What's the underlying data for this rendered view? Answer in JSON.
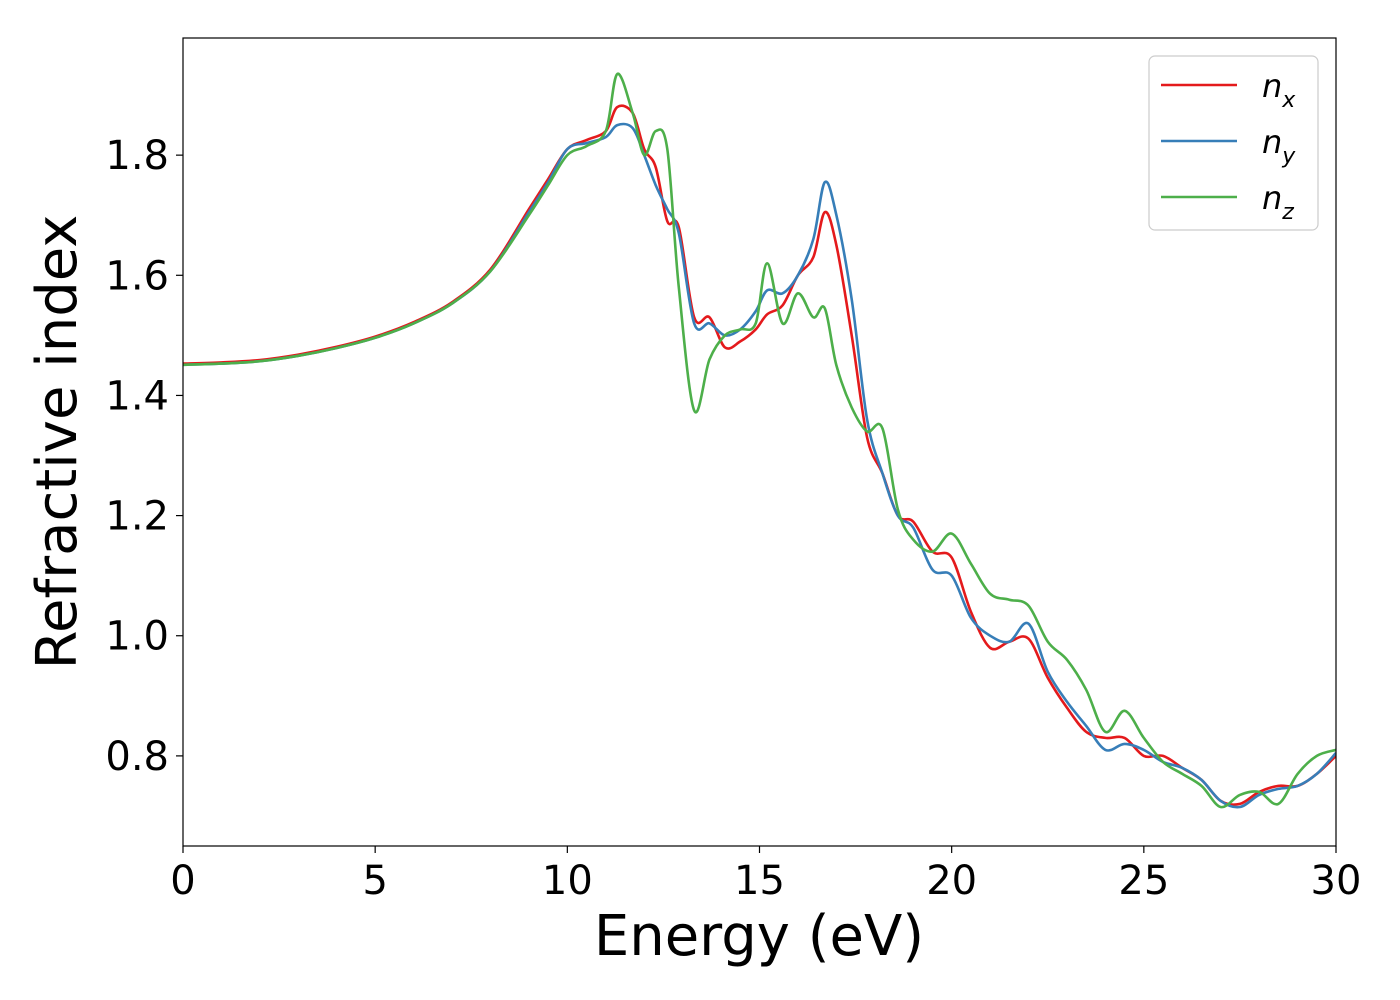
{
  "chart_data": {
    "type": "line",
    "xlabel": "Energy (eV)",
    "ylabel": "Refractive index",
    "xlim": [
      0,
      30
    ],
    "ylim": [
      0.65,
      1.995
    ],
    "xticks": [
      "0",
      "5",
      "10",
      "15",
      "20",
      "25",
      "30"
    ],
    "yticks": [
      "0.8",
      "1.0",
      "1.2",
      "1.4",
      "1.6",
      "1.8"
    ],
    "grid": false,
    "legend_position": "top-right",
    "series": [
      {
        "name": "n_x",
        "label_main": "n",
        "label_sub": "x",
        "color": "#e41a1c",
        "x": [
          0,
          1,
          2,
          3,
          4,
          5,
          6,
          7,
          8,
          9,
          9.5,
          10,
          10.5,
          11,
          11.3,
          11.7,
          12,
          12.3,
          12.6,
          12.9,
          13.3,
          13.7,
          14.1,
          14.5,
          14.9,
          15.2,
          15.6,
          16,
          16.4,
          16.7,
          17,
          17.4,
          17.8,
          18.2,
          18.6,
          19,
          19.5,
          20,
          20.5,
          21,
          21.5,
          22,
          22.5,
          23,
          23.5,
          24,
          24.5,
          25,
          25.5,
          26,
          26.5,
          27,
          27.5,
          28,
          28.5,
          29,
          29.5,
          30
        ],
        "y": [
          1.453,
          1.455,
          1.459,
          1.468,
          1.481,
          1.498,
          1.522,
          1.555,
          1.61,
          1.71,
          1.76,
          1.81,
          1.825,
          1.84,
          1.88,
          1.87,
          1.81,
          1.78,
          1.69,
          1.68,
          1.53,
          1.53,
          1.48,
          1.49,
          1.51,
          1.535,
          1.55,
          1.6,
          1.63,
          1.705,
          1.65,
          1.5,
          1.33,
          1.27,
          1.2,
          1.19,
          1.14,
          1.13,
          1.04,
          0.98,
          0.99,
          0.995,
          0.93,
          0.88,
          0.84,
          0.83,
          0.83,
          0.8,
          0.8,
          0.78,
          0.76,
          0.725,
          0.72,
          0.74,
          0.75,
          0.75,
          0.77,
          0.8
        ]
      },
      {
        "name": "n_y",
        "label_main": "n",
        "label_sub": "y",
        "color": "#377eb8",
        "x": [
          0,
          1,
          2,
          3,
          4,
          5,
          6,
          7,
          8,
          9,
          9.5,
          10,
          10.5,
          11,
          11.3,
          11.7,
          12,
          12.3,
          12.6,
          12.9,
          13.3,
          13.7,
          14.1,
          14.5,
          14.9,
          15.2,
          15.6,
          16,
          16.4,
          16.7,
          17,
          17.4,
          17.8,
          18.2,
          18.6,
          19,
          19.5,
          20,
          20.5,
          21,
          21.5,
          22,
          22.5,
          23,
          23.5,
          24,
          24.5,
          25,
          25.5,
          26,
          26.5,
          27,
          27.5,
          28,
          28.5,
          29,
          29.5,
          30
        ],
        "y": [
          1.451,
          1.453,
          1.457,
          1.466,
          1.479,
          1.496,
          1.52,
          1.553,
          1.607,
          1.705,
          1.755,
          1.81,
          1.82,
          1.83,
          1.85,
          1.845,
          1.8,
          1.75,
          1.71,
          1.67,
          1.52,
          1.52,
          1.5,
          1.51,
          1.54,
          1.575,
          1.57,
          1.6,
          1.66,
          1.755,
          1.7,
          1.56,
          1.36,
          1.27,
          1.2,
          1.18,
          1.11,
          1.1,
          1.03,
          1.0,
          0.99,
          1.02,
          0.94,
          0.89,
          0.85,
          0.81,
          0.82,
          0.81,
          0.79,
          0.78,
          0.76,
          0.725,
          0.715,
          0.735,
          0.745,
          0.75,
          0.77,
          0.805
        ]
      },
      {
        "name": "n_z",
        "label_main": "n",
        "label_sub": "z",
        "color": "#4daf4a",
        "x": [
          0,
          1,
          2,
          3,
          4,
          5,
          6,
          7,
          8,
          9,
          9.5,
          10,
          10.5,
          11,
          11.3,
          11.7,
          12,
          12.3,
          12.6,
          12.9,
          13.3,
          13.7,
          14.1,
          14.5,
          14.9,
          15.2,
          15.6,
          16,
          16.4,
          16.7,
          17,
          17.4,
          17.8,
          18.2,
          18.6,
          19,
          19.5,
          20,
          20.5,
          21,
          21.5,
          22,
          22.5,
          23,
          23.5,
          24,
          24.5,
          25,
          25.5,
          26,
          26.5,
          27,
          27.5,
          28,
          28.5,
          29,
          29.5,
          30
        ],
        "y": [
          1.451,
          1.453,
          1.457,
          1.466,
          1.479,
          1.496,
          1.52,
          1.553,
          1.607,
          1.7,
          1.75,
          1.8,
          1.815,
          1.84,
          1.935,
          1.87,
          1.8,
          1.84,
          1.81,
          1.58,
          1.375,
          1.46,
          1.5,
          1.51,
          1.52,
          1.62,
          1.52,
          1.57,
          1.53,
          1.545,
          1.45,
          1.38,
          1.34,
          1.345,
          1.21,
          1.16,
          1.14,
          1.17,
          1.12,
          1.07,
          1.06,
          1.05,
          0.99,
          0.96,
          0.91,
          0.84,
          0.875,
          0.83,
          0.79,
          0.77,
          0.75,
          0.715,
          0.735,
          0.74,
          0.72,
          0.77,
          0.8,
          0.81
        ]
      }
    ]
  }
}
